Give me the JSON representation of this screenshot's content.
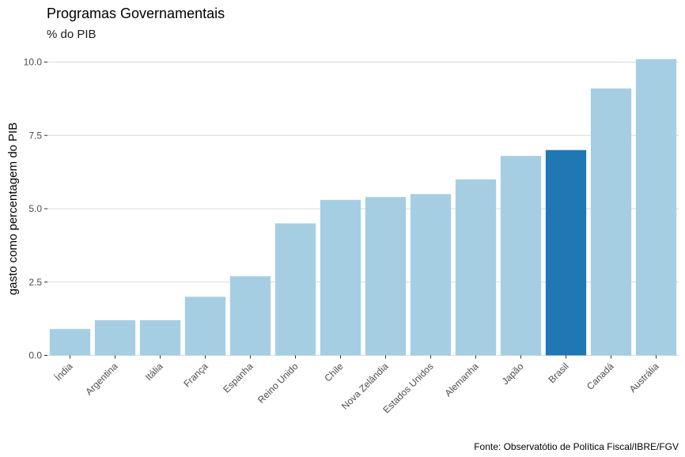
{
  "chart_data": {
    "type": "bar",
    "title": "Programas Governamentais",
    "subtitle": "% do PIB",
    "xlabel": "",
    "ylabel": "gasto como percentagem do PIB",
    "caption": "Fonte: Observatótio de Política Fiscal/IBRE/FGV",
    "categories": [
      "Índia",
      "Argentina",
      "Itália",
      "França",
      "Espanha",
      "Reino Unido",
      "Chile",
      "Nova Zelândia",
      "Estados Unidos",
      "Alemanha",
      "Japão",
      "Brasil",
      "Canadá",
      "Austrália"
    ],
    "values": [
      0.9,
      1.2,
      1.2,
      2.0,
      2.7,
      4.5,
      5.3,
      5.4,
      5.5,
      6.0,
      6.8,
      7.0,
      9.1,
      10.1
    ],
    "highlight": "Brasil",
    "ylim": [
      0,
      10.1
    ],
    "yticks": [
      "0.0",
      "2.5",
      "5.0",
      "7.5",
      "10.0"
    ],
    "grid": true,
    "legend": "none",
    "colors": {
      "bar": "#a6cee3",
      "highlight": "#1f78b4",
      "grid": "#d9d9d9",
      "tick_text": "#4d4d4d"
    }
  }
}
